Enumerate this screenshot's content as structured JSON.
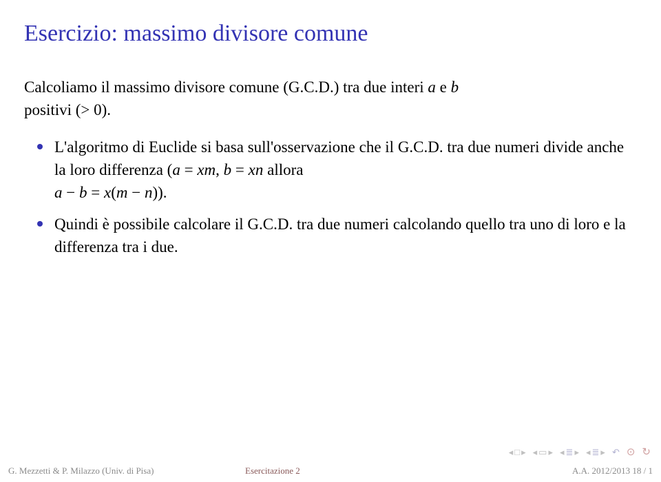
{
  "colors": {
    "title": "#3333b3",
    "text": "#000000",
    "bullet": "#3333b3",
    "footer_gray": "#8a8a8a",
    "footer_red": "#8a5a5a",
    "nav_gray": "#c0c0c0",
    "background": "#ffffff"
  },
  "title": "Esercizio: massimo divisore comune",
  "intro": {
    "line1_prefix": "Calcoliamo il massimo divisore comune (G.C.D.) tra due interi ",
    "var_a": "a",
    "mid1": " e ",
    "var_b": "b",
    "line2": "positivi (> 0)."
  },
  "bullet1": {
    "part1": "L'algoritmo di Euclide si basa sull'osservazione che il G.C.D. tra due numeri divide anche la loro differenza (",
    "eq1_a": "a",
    "eq1_eq": " = ",
    "eq1_xm": "xm",
    "eq1_comma": ", ",
    "eq1_b": "b",
    "eq1_eq2": " = ",
    "eq1_xn": "xn",
    "part2": " allora",
    "eq2_a": "a",
    "eq2_minus": " − ",
    "eq2_b": "b",
    "eq2_eq": " = ",
    "eq2_x": "x",
    "eq2_open": "(",
    "eq2_m": "m",
    "eq2_minus2": " − ",
    "eq2_n": "n",
    "eq2_close": ")).",
    "part3": ""
  },
  "bullet2": "Quindi è possibile calcolare il G.C.D. tra due numeri calcolando quello tra uno di loro e la differenza tra i due.",
  "footer": {
    "left": "G. Mezzetti & P. Milazzo (Univ. di Pisa)",
    "center": "Esercitazione 2",
    "right": "A.A. 2012/2013     18 / 1"
  },
  "typography": {
    "title_fontsize": 34,
    "body_fontsize": 23,
    "footer_fontsize": 13
  }
}
